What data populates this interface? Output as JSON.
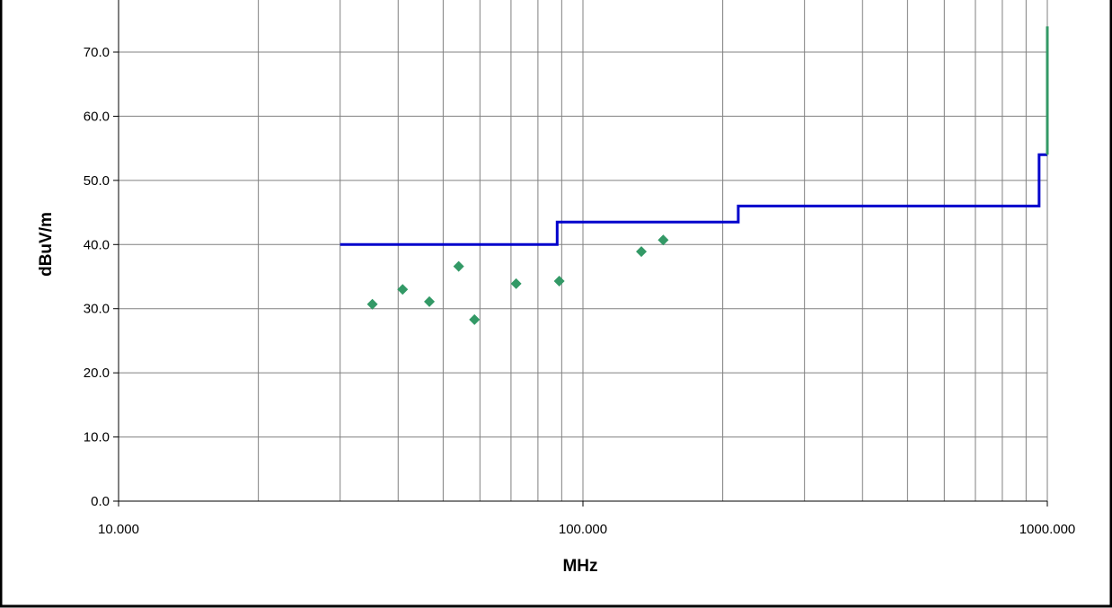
{
  "chart_data": {
    "type": "scatter",
    "xlabel": "MHz",
    "ylabel": "dBuV/m",
    "x_scale": "log",
    "xlim": [
      10,
      1000
    ],
    "ylim": [
      0,
      75
    ],
    "grid": true,
    "x_ticks": [
      "10.000",
      "100.000",
      "1000.000"
    ],
    "y_ticks": [
      "0.0",
      "10.0",
      "20.0",
      "30.0",
      "40.0",
      "50.0",
      "60.0",
      "70.0"
    ],
    "series": [
      {
        "type": "step-line",
        "color": "#0000cc",
        "points": [
          [
            30,
            40.0
          ],
          [
            88,
            40.0
          ],
          [
            88,
            43.5
          ],
          [
            216,
            43.5
          ],
          [
            216,
            46.0
          ],
          [
            960,
            46.0
          ],
          [
            960,
            54.0
          ],
          [
            1000,
            54.0
          ]
        ]
      },
      {
        "type": "line",
        "color": "#339966",
        "points": [
          [
            1000,
            54.0
          ],
          [
            1000,
            74.0
          ],
          [
            1000,
            74.0
          ]
        ]
      },
      {
        "type": "scatter",
        "color": "#339966",
        "marker": "diamond",
        "points": [
          [
            35.2,
            30.7
          ],
          [
            40.9,
            33.0
          ],
          [
            46.7,
            31.1
          ],
          [
            54.0,
            36.6
          ],
          [
            58.4,
            28.3
          ],
          [
            71.8,
            33.9
          ],
          [
            88.9,
            34.3
          ],
          [
            133.6,
            38.9
          ],
          [
            148.9,
            40.7
          ]
        ]
      }
    ]
  }
}
